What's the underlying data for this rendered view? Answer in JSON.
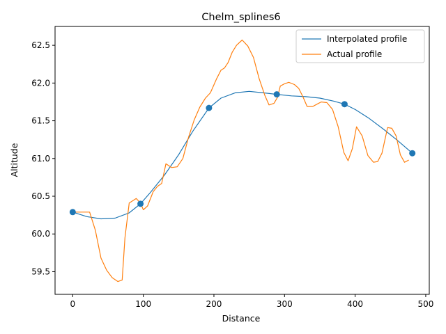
{
  "chart_data": {
    "type": "line",
    "title": "Chelm_splines6",
    "xlabel": "Distance",
    "ylabel": "Altitude",
    "xlim": [
      -25,
      505
    ],
    "ylim": [
      59.2,
      62.75
    ],
    "xticks": [
      0,
      100,
      200,
      300,
      400,
      500
    ],
    "yticks": [
      59.5,
      60.0,
      60.5,
      61.0,
      61.5,
      62.0,
      62.5
    ],
    "xtick_labels": [
      "0",
      "100",
      "200",
      "300",
      "400",
      "500"
    ],
    "ytick_labels": [
      "59.5",
      "60.0",
      "60.5",
      "61.0",
      "61.5",
      "62.0",
      "62.5"
    ],
    "grid": false,
    "legend_position": "top-right",
    "series": [
      {
        "name": "Interpolated profile",
        "color": "#1f77b4",
        "x": [
          0,
          20,
          40,
          60,
          80,
          96,
          110,
          130,
          150,
          170,
          193,
          210,
          230,
          250,
          270,
          289,
          310,
          330,
          350,
          370,
          385,
          400,
          420,
          440,
          460,
          481
        ],
        "y": [
          60.29,
          60.23,
          60.2,
          60.21,
          60.28,
          60.4,
          60.55,
          60.78,
          61.05,
          61.36,
          61.67,
          61.8,
          61.87,
          61.89,
          61.87,
          61.85,
          61.83,
          61.82,
          61.8,
          61.76,
          61.72,
          61.65,
          61.53,
          61.39,
          61.24,
          61.07
        ]
      },
      {
        "name": "Actual profile",
        "color": "#ff7f0e",
        "x": [
          0,
          10,
          24,
          32,
          40,
          48,
          56,
          64,
          70,
          74,
          80,
          90,
          96,
          100,
          106,
          114,
          120,
          126,
          132,
          140,
          148,
          156,
          164,
          172,
          180,
          188,
          195,
          204,
          210,
          215,
          220,
          226,
          232,
          240,
          248,
          256,
          264,
          272,
          278,
          285,
          290,
          294,
          300,
          306,
          314,
          320,
          326,
          332,
          340,
          346,
          352,
          360,
          368,
          376,
          384,
          390,
          396,
          402,
          410,
          418,
          426,
          432,
          438,
          446,
          452,
          458,
          464,
          470,
          476
        ],
        "y": [
          60.29,
          60.29,
          60.29,
          60.05,
          59.68,
          59.52,
          59.42,
          59.37,
          59.39,
          59.95,
          60.41,
          60.47,
          60.41,
          60.32,
          60.37,
          60.56,
          60.63,
          60.67,
          60.93,
          60.88,
          60.89,
          61.0,
          61.28,
          61.51,
          61.68,
          61.8,
          61.87,
          62.06,
          62.17,
          62.2,
          62.27,
          62.41,
          62.5,
          62.57,
          62.49,
          62.34,
          62.06,
          61.84,
          61.71,
          61.73,
          61.81,
          61.96,
          61.99,
          62.01,
          61.98,
          61.93,
          61.82,
          61.69,
          61.69,
          61.72,
          61.75,
          61.74,
          61.65,
          61.42,
          61.08,
          60.97,
          61.13,
          61.42,
          61.3,
          61.04,
          60.95,
          60.96,
          61.07,
          61.41,
          61.4,
          61.3,
          61.05,
          60.95,
          60.98
        ]
      }
    ],
    "knots": {
      "color": "#1f77b4",
      "x": [
        0,
        96,
        193,
        289,
        385,
        481
      ],
      "y": [
        60.29,
        60.4,
        61.67,
        61.85,
        61.72,
        61.07
      ]
    }
  }
}
